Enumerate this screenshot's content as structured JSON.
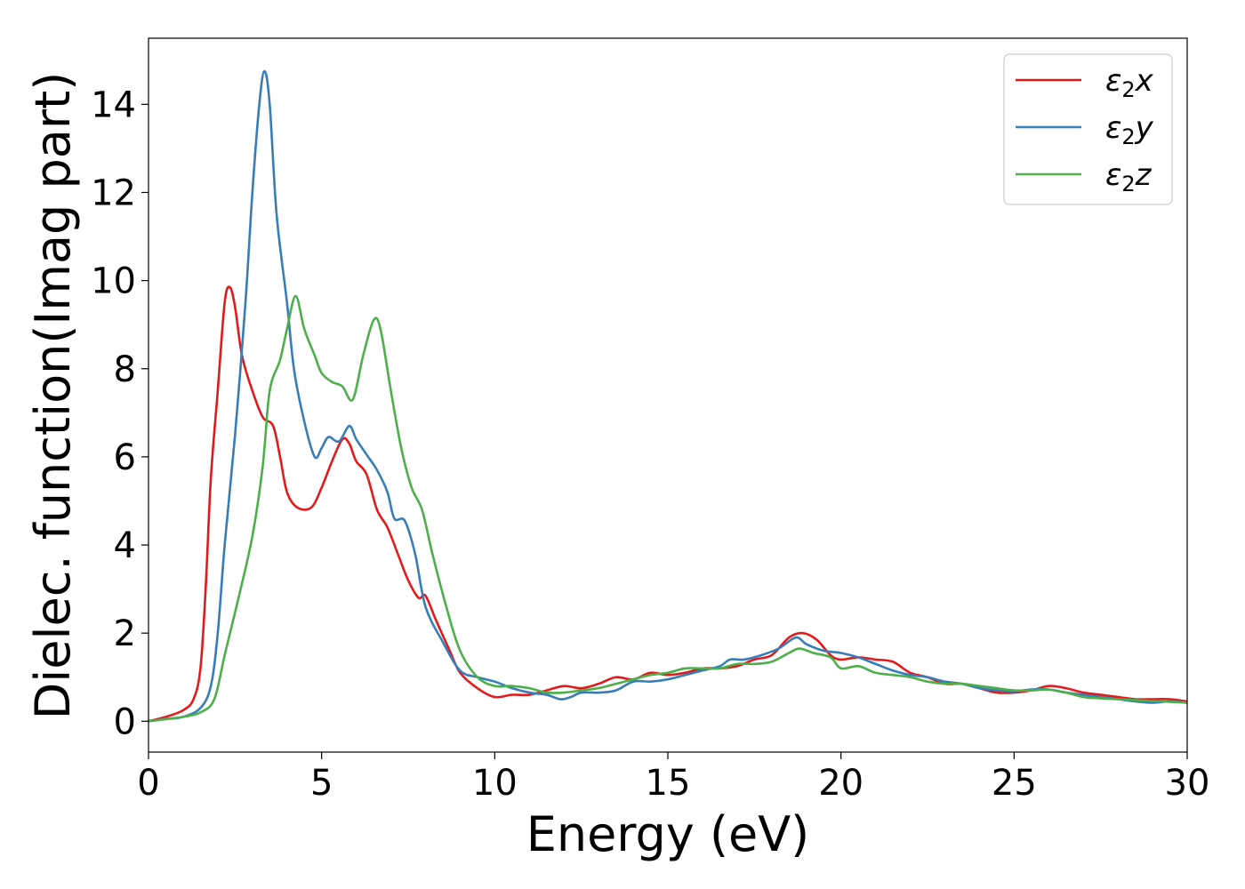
{
  "chart_data": {
    "type": "line",
    "title": "",
    "xlabel": "Energy (eV)",
    "ylabel": "Dielec. function(Imag part)",
    "xlim": [
      0,
      30
    ],
    "ylim": [
      -0.7,
      15.5
    ],
    "xticks": [
      0,
      5,
      10,
      15,
      20,
      25,
      30
    ],
    "yticks": [
      0,
      2,
      4,
      6,
      8,
      10,
      12,
      14
    ],
    "grid": false,
    "legend_position": "top-right",
    "series": [
      {
        "name": "ε₂x",
        "legend_main": "ε",
        "legend_sub": "2",
        "legend_suffix": "x",
        "color": "#e31a1c",
        "points": [
          [
            0,
            0
          ],
          [
            0.5,
            0.1
          ],
          [
            1.0,
            0.25
          ],
          [
            1.3,
            0.5
          ],
          [
            1.5,
            1.2
          ],
          [
            1.65,
            3.0
          ],
          [
            1.8,
            5.5
          ],
          [
            2.0,
            7.5
          ],
          [
            2.2,
            9.5
          ],
          [
            2.35,
            9.85
          ],
          [
            2.5,
            9.4
          ],
          [
            2.7,
            8.3
          ],
          [
            3.0,
            7.5
          ],
          [
            3.3,
            6.9
          ],
          [
            3.6,
            6.7
          ],
          [
            3.8,
            6.0
          ],
          [
            4.0,
            5.2
          ],
          [
            4.3,
            4.85
          ],
          [
            4.7,
            4.85
          ],
          [
            5.0,
            5.3
          ],
          [
            5.3,
            5.9
          ],
          [
            5.6,
            6.4
          ],
          [
            5.8,
            6.3
          ],
          [
            6.0,
            5.9
          ],
          [
            6.3,
            5.6
          ],
          [
            6.6,
            4.8
          ],
          [
            6.9,
            4.4
          ],
          [
            7.2,
            3.8
          ],
          [
            7.5,
            3.2
          ],
          [
            7.8,
            2.8
          ],
          [
            8.0,
            2.85
          ],
          [
            8.3,
            2.3
          ],
          [
            8.7,
            1.6
          ],
          [
            9.0,
            1.1
          ],
          [
            9.5,
            0.75
          ],
          [
            10.0,
            0.55
          ],
          [
            10.5,
            0.6
          ],
          [
            11.0,
            0.6
          ],
          [
            11.5,
            0.7
          ],
          [
            12.0,
            0.8
          ],
          [
            12.5,
            0.75
          ],
          [
            13.0,
            0.85
          ],
          [
            13.5,
            1.0
          ],
          [
            14.0,
            0.95
          ],
          [
            14.5,
            1.1
          ],
          [
            15.0,
            1.05
          ],
          [
            15.5,
            1.1
          ],
          [
            16.0,
            1.2
          ],
          [
            16.5,
            1.2
          ],
          [
            17.0,
            1.25
          ],
          [
            17.5,
            1.4
          ],
          [
            18.0,
            1.5
          ],
          [
            18.5,
            1.9
          ],
          [
            18.9,
            2.0
          ],
          [
            19.3,
            1.85
          ],
          [
            19.7,
            1.5
          ],
          [
            20.0,
            1.4
          ],
          [
            20.5,
            1.45
          ],
          [
            21.0,
            1.4
          ],
          [
            21.5,
            1.35
          ],
          [
            22.0,
            1.1
          ],
          [
            22.5,
            1.0
          ],
          [
            23.0,
            0.85
          ],
          [
            23.5,
            0.85
          ],
          [
            24.0,
            0.75
          ],
          [
            24.5,
            0.65
          ],
          [
            25.0,
            0.65
          ],
          [
            25.5,
            0.7
          ],
          [
            26.0,
            0.8
          ],
          [
            26.5,
            0.75
          ],
          [
            27.0,
            0.65
          ],
          [
            27.5,
            0.6
          ],
          [
            28.0,
            0.55
          ],
          [
            28.5,
            0.5
          ],
          [
            29.0,
            0.5
          ],
          [
            29.5,
            0.5
          ],
          [
            30.0,
            0.45
          ]
        ]
      },
      {
        "name": "ε₂y",
        "legend_main": "ε",
        "legend_sub": "2",
        "legend_suffix": "y",
        "color": "#377eb8",
        "points": [
          [
            0,
            0
          ],
          [
            0.5,
            0.05
          ],
          [
            1.0,
            0.1
          ],
          [
            1.5,
            0.3
          ],
          [
            1.8,
            0.8
          ],
          [
            2.0,
            2.0
          ],
          [
            2.2,
            4.0
          ],
          [
            2.5,
            6.5
          ],
          [
            2.8,
            9.5
          ],
          [
            3.0,
            12.0
          ],
          [
            3.2,
            14.0
          ],
          [
            3.35,
            14.75
          ],
          [
            3.5,
            14.0
          ],
          [
            3.7,
            11.5
          ],
          [
            4.0,
            9.5
          ],
          [
            4.2,
            8.0
          ],
          [
            4.5,
            6.8
          ],
          [
            4.8,
            6.0
          ],
          [
            5.0,
            6.2
          ],
          [
            5.2,
            6.45
          ],
          [
            5.5,
            6.35
          ],
          [
            5.8,
            6.7
          ],
          [
            6.0,
            6.4
          ],
          [
            6.3,
            6.05
          ],
          [
            6.6,
            5.7
          ],
          [
            6.9,
            5.2
          ],
          [
            7.1,
            4.6
          ],
          [
            7.4,
            4.55
          ],
          [
            7.7,
            3.8
          ],
          [
            8.0,
            2.6
          ],
          [
            8.5,
            1.8
          ],
          [
            9.0,
            1.15
          ],
          [
            9.5,
            1.0
          ],
          [
            10.0,
            0.9
          ],
          [
            10.5,
            0.75
          ],
          [
            11.0,
            0.65
          ],
          [
            11.5,
            0.6
          ],
          [
            11.9,
            0.5
          ],
          [
            12.2,
            0.55
          ],
          [
            12.5,
            0.65
          ],
          [
            13.0,
            0.65
          ],
          [
            13.5,
            0.7
          ],
          [
            14.0,
            0.9
          ],
          [
            14.5,
            0.9
          ],
          [
            15.0,
            0.95
          ],
          [
            15.5,
            1.05
          ],
          [
            16.0,
            1.15
          ],
          [
            16.5,
            1.25
          ],
          [
            16.8,
            1.4
          ],
          [
            17.2,
            1.4
          ],
          [
            17.7,
            1.5
          ],
          [
            18.2,
            1.65
          ],
          [
            18.7,
            1.9
          ],
          [
            19.0,
            1.75
          ],
          [
            19.5,
            1.6
          ],
          [
            20.0,
            1.55
          ],
          [
            20.5,
            1.45
          ],
          [
            21.0,
            1.3
          ],
          [
            21.5,
            1.15
          ],
          [
            22.0,
            1.05
          ],
          [
            22.5,
            1.0
          ],
          [
            23.0,
            0.9
          ],
          [
            23.5,
            0.85
          ],
          [
            24.0,
            0.75
          ],
          [
            24.5,
            0.7
          ],
          [
            25.0,
            0.68
          ],
          [
            25.5,
            0.72
          ],
          [
            26.0,
            0.72
          ],
          [
            26.5,
            0.65
          ],
          [
            27.0,
            0.6
          ],
          [
            27.5,
            0.55
          ],
          [
            28.0,
            0.5
          ],
          [
            28.5,
            0.45
          ],
          [
            29.0,
            0.42
          ],
          [
            29.5,
            0.45
          ],
          [
            30.0,
            0.42
          ]
        ]
      },
      {
        "name": "ε₂z",
        "legend_main": "ε",
        "legend_sub": "2",
        "legend_suffix": "z",
        "color": "#4daf4a",
        "points": [
          [
            0,
            0
          ],
          [
            0.5,
            0.05
          ],
          [
            1.0,
            0.1
          ],
          [
            1.5,
            0.2
          ],
          [
            1.9,
            0.5
          ],
          [
            2.2,
            1.5
          ],
          [
            2.6,
            2.8
          ],
          [
            3.0,
            4.2
          ],
          [
            3.3,
            5.8
          ],
          [
            3.5,
            7.5
          ],
          [
            3.8,
            8.2
          ],
          [
            4.0,
            8.9
          ],
          [
            4.25,
            9.65
          ],
          [
            4.5,
            8.9
          ],
          [
            4.8,
            8.3
          ],
          [
            5.0,
            7.9
          ],
          [
            5.3,
            7.7
          ],
          [
            5.6,
            7.6
          ],
          [
            5.9,
            7.3
          ],
          [
            6.2,
            8.3
          ],
          [
            6.5,
            9.1
          ],
          [
            6.7,
            8.9
          ],
          [
            7.0,
            7.5
          ],
          [
            7.3,
            6.2
          ],
          [
            7.6,
            5.3
          ],
          [
            7.9,
            4.8
          ],
          [
            8.2,
            3.8
          ],
          [
            8.6,
            2.6
          ],
          [
            9.0,
            1.6
          ],
          [
            9.5,
            1.0
          ],
          [
            10.0,
            0.8
          ],
          [
            10.5,
            0.8
          ],
          [
            11.0,
            0.75
          ],
          [
            11.5,
            0.65
          ],
          [
            12.0,
            0.65
          ],
          [
            12.5,
            0.7
          ],
          [
            13.0,
            0.75
          ],
          [
            13.5,
            0.85
          ],
          [
            14.0,
            0.95
          ],
          [
            14.5,
            1.05
          ],
          [
            15.0,
            1.1
          ],
          [
            15.5,
            1.2
          ],
          [
            16.0,
            1.2
          ],
          [
            16.5,
            1.2
          ],
          [
            17.0,
            1.3
          ],
          [
            17.5,
            1.3
          ],
          [
            18.0,
            1.35
          ],
          [
            18.5,
            1.55
          ],
          [
            18.8,
            1.65
          ],
          [
            19.2,
            1.55
          ],
          [
            19.7,
            1.45
          ],
          [
            20.0,
            1.2
          ],
          [
            20.5,
            1.25
          ],
          [
            21.0,
            1.1
          ],
          [
            21.5,
            1.05
          ],
          [
            22.0,
            1.0
          ],
          [
            22.5,
            0.9
          ],
          [
            23.0,
            0.85
          ],
          [
            23.5,
            0.85
          ],
          [
            24.0,
            0.8
          ],
          [
            24.5,
            0.75
          ],
          [
            25.0,
            0.7
          ],
          [
            25.5,
            0.7
          ],
          [
            26.0,
            0.72
          ],
          [
            26.5,
            0.65
          ],
          [
            27.0,
            0.55
          ],
          [
            27.5,
            0.52
          ],
          [
            28.0,
            0.5
          ],
          [
            28.5,
            0.48
          ],
          [
            29.0,
            0.46
          ],
          [
            29.5,
            0.44
          ],
          [
            30.0,
            0.42
          ]
        ]
      }
    ]
  }
}
